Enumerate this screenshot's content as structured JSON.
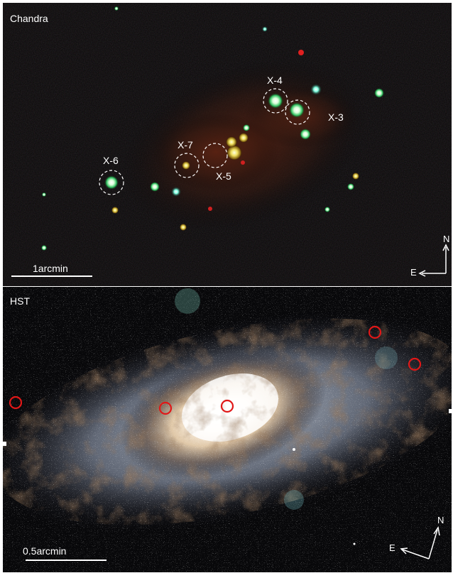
{
  "panels": {
    "chandra": {
      "label": "Chandra",
      "scale_label": "1arcmin",
      "sources": [
        {
          "name": "X-4"
        },
        {
          "name": "X-3"
        },
        {
          "name": "X-7"
        },
        {
          "name": "X-5"
        },
        {
          "name": "X-6"
        }
      ],
      "compass": {
        "north": "N",
        "east": "E"
      }
    },
    "hst": {
      "label": "HST",
      "scale_label": "0.5arcmin",
      "compass": {
        "north": "N",
        "east": "E"
      }
    }
  },
  "colors": {
    "source_circle": "#ffffff",
    "hst_marker": "#e01818",
    "text": "#ffffff"
  }
}
